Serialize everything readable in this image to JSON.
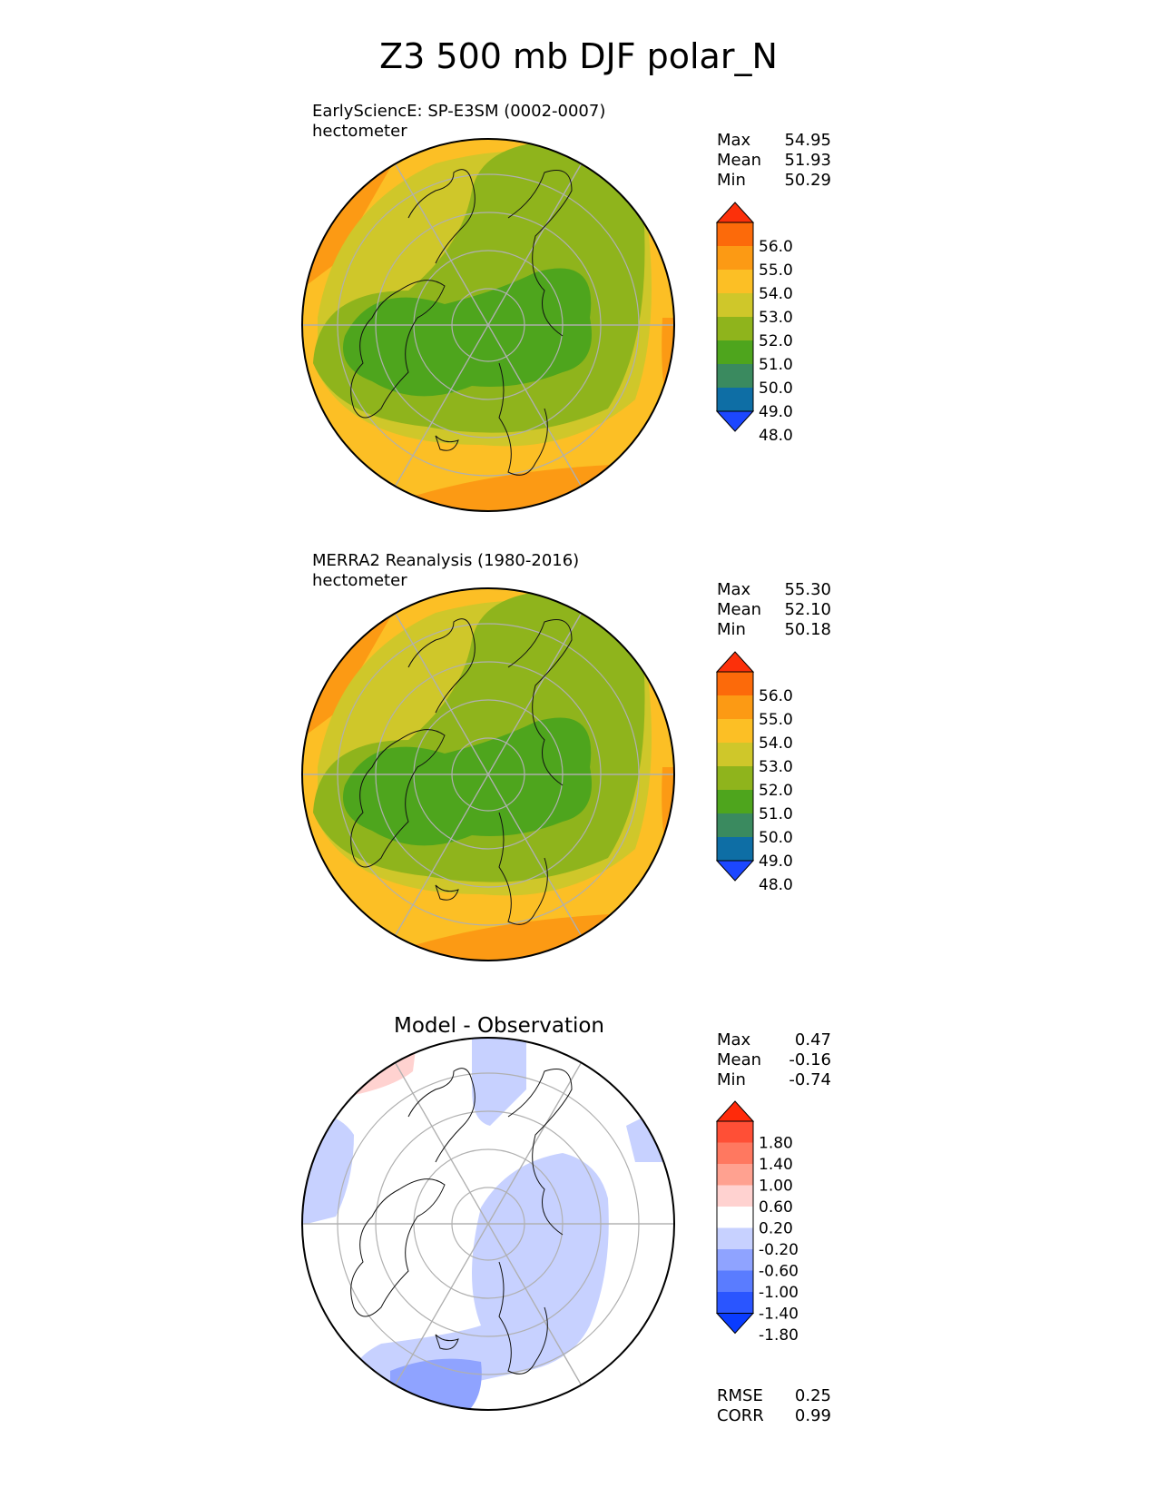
{
  "figure": {
    "title": "Z3 500 mb DJF polar_N"
  },
  "colors": {
    "absolute": [
      "#1c47ff",
      "#0e6ea5",
      "#3a8a5f",
      "#4ea51d",
      "#8fb41c",
      "#cfc72a",
      "#fcbf25",
      "#fc9a14",
      "#fc6a0a",
      "#fc300a"
    ],
    "difference": [
      "#0a3cff",
      "#2a55ff",
      "#5a7cff",
      "#8fa3ff",
      "#c7d1ff",
      "#ffffff",
      "#ffd2d0",
      "#ffa190",
      "#ff7860",
      "#ff4f36",
      "#ff2a0a"
    ]
  },
  "chart_data": [
    {
      "type": "heatmap",
      "projection": "north polar stereographic",
      "title": "EarlySciencE: SP-E3SM (0002-0007)",
      "units": "hectometer",
      "stats": {
        "max": "54.95",
        "mean": "51.93",
        "min": "50.29"
      },
      "labels": {
        "max": "Max",
        "mean": "Mean",
        "min": "Min"
      },
      "colorbar_levels": [
        "56.0",
        "55.0",
        "54.0",
        "53.0",
        "52.0",
        "51.0",
        "50.0",
        "49.0",
        "48.0"
      ],
      "value_range": [
        50.29,
        54.95
      ]
    },
    {
      "type": "heatmap",
      "projection": "north polar stereographic",
      "title": "MERRA2 Reanalysis (1980-2016)",
      "units": "hectometer",
      "stats": {
        "max": "55.30",
        "mean": "52.10",
        "min": "50.18"
      },
      "labels": {
        "max": "Max",
        "mean": "Mean",
        "min": "Min"
      },
      "colorbar_levels": [
        "56.0",
        "55.0",
        "54.0",
        "53.0",
        "52.0",
        "51.0",
        "50.0",
        "49.0",
        "48.0"
      ],
      "value_range": [
        50.18,
        55.3
      ]
    },
    {
      "type": "heatmap",
      "projection": "north polar stereographic",
      "title": "Model - Observation",
      "stats": {
        "max": "0.47",
        "mean": "-0.16",
        "min": "-0.74"
      },
      "labels": {
        "max": "Max",
        "mean": "Mean",
        "min": "Min"
      },
      "colorbar_levels": [
        "1.80",
        "1.40",
        "1.00",
        "0.60",
        "0.20",
        "-0.20",
        "-0.60",
        "-1.00",
        "-1.40",
        "-1.80"
      ],
      "metrics": {
        "rmse_label": "RMSE",
        "rmse": "0.25",
        "corr_label": "CORR",
        "corr": "0.99"
      },
      "value_range": [
        -0.74,
        0.47
      ]
    }
  ]
}
